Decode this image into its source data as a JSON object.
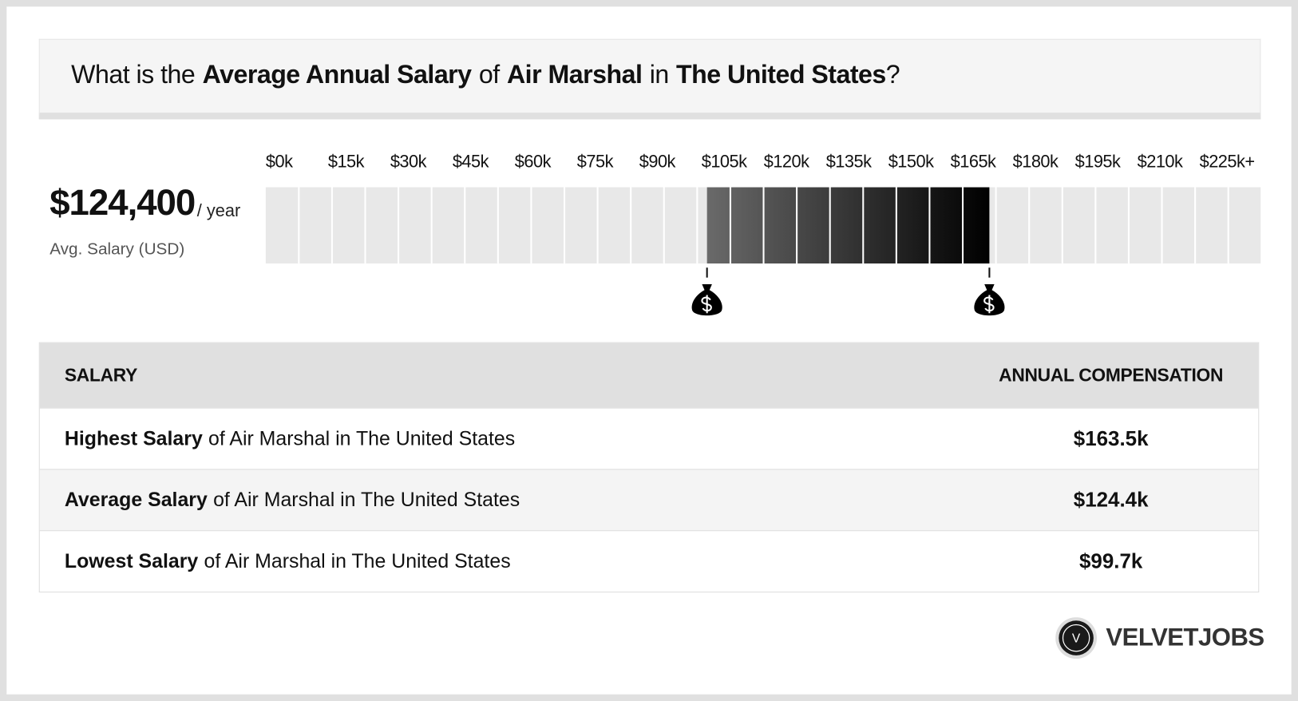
{
  "header": {
    "title_parts": [
      {
        "text": "What is the",
        "bold": false
      },
      {
        "text": "Average Annual Salary",
        "bold": true
      },
      {
        "text": "of",
        "bold": false
      },
      {
        "text": "Air Marshal",
        "bold": true
      },
      {
        "text": "in",
        "bold": false
      },
      {
        "text": "The United States",
        "bold": true
      },
      {
        "text": "?",
        "bold": false
      }
    ]
  },
  "summary": {
    "value": "$124,400",
    "unit": "/ year",
    "label": "Avg. Salary (USD)"
  },
  "scale": {
    "ticks": [
      {
        "value": 0,
        "label": "$0k"
      },
      {
        "value": 15,
        "label": "$15k"
      },
      {
        "value": 30,
        "label": "$30k"
      },
      {
        "value": 45,
        "label": "$45k"
      },
      {
        "value": 60,
        "label": "$60k"
      },
      {
        "value": 75,
        "label": "$75k"
      },
      {
        "value": 90,
        "label": "$90k"
      },
      {
        "value": 105,
        "label": "$105k"
      },
      {
        "value": 120,
        "label": "$120k"
      },
      {
        "value": 135,
        "label": "$135k"
      },
      {
        "value": 150,
        "label": "$150k"
      },
      {
        "value": 165,
        "label": "$165k"
      },
      {
        "value": 180,
        "label": "$180k"
      },
      {
        "value": 195,
        "label": "$195k"
      },
      {
        "value": 210,
        "label": "$210k"
      },
      {
        "value": 225,
        "label": "$225k+"
      }
    ],
    "range": {
      "low": 99.7,
      "high": 163.5
    }
  },
  "table": {
    "header": [
      "SALARY",
      "ANNUAL COMPENSATION"
    ],
    "rows": [
      {
        "bold": "Highest Salary",
        "text": "of Air Marshal in The United States",
        "value": "$163.5k"
      },
      {
        "bold": "Average Salary",
        "text": "of Air Marshal in The United States",
        "value": "$124.4k"
      },
      {
        "bold": "Lowest Salary",
        "text": "of Air Marshal in The United States",
        "value": "$99.7k"
      }
    ]
  },
  "logo": {
    "mark": "V",
    "name": "VELVETJOBS"
  }
}
